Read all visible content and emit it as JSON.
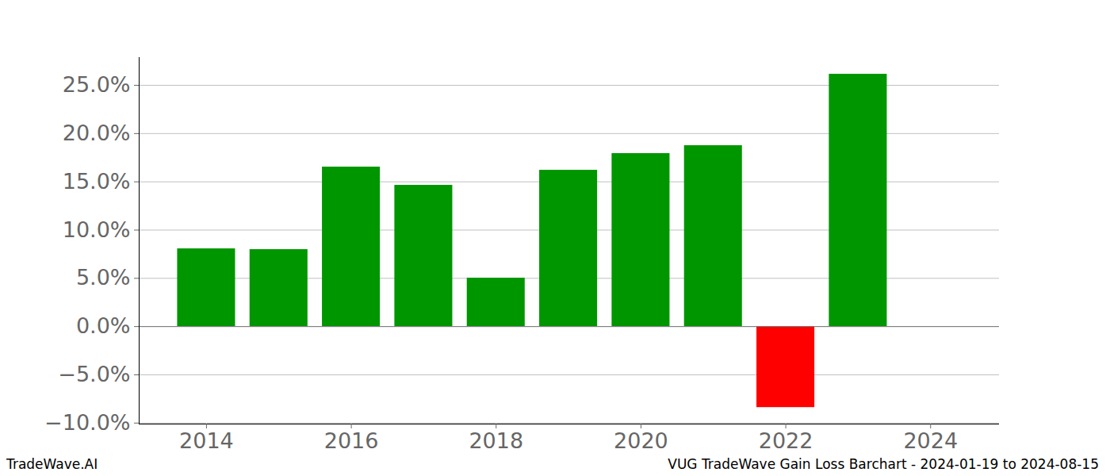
{
  "chart_data": {
    "type": "bar",
    "title": "VUG TradeWave Gain Loss Barchart - 2024-01-19 to 2024-08-15",
    "source": "TradeWave.AI",
    "x": [
      2014,
      2015,
      2016,
      2017,
      2018,
      2019,
      2020,
      2021,
      2022,
      2023
    ],
    "values": [
      8.06,
      7.98,
      16.53,
      14.64,
      5.02,
      16.2,
      17.93,
      18.75,
      -8.39,
      26.15
    ],
    "colors": [
      "#009600",
      "#009600",
      "#009600",
      "#009600",
      "#009600",
      "#009600",
      "#009600",
      "#009600",
      "#ff0000",
      "#009600"
    ],
    "xlim": [
      2013.07,
      2024.95
    ],
    "xticks": [
      2014,
      2016,
      2018,
      2020,
      2022,
      2024
    ],
    "ylim": [
      -10.1,
      27.88
    ],
    "yticks": [
      {
        "value": -10,
        "label": "−10.0%"
      },
      {
        "value": -5,
        "label": "−5.0%"
      },
      {
        "value": 0,
        "label": "0.0%"
      },
      {
        "value": 5,
        "label": "5.0%"
      },
      {
        "value": 10,
        "label": "10.0%"
      },
      {
        "value": 15,
        "label": "15.0%"
      },
      {
        "value": 20,
        "label": "20.0%"
      },
      {
        "value": 25,
        "label": "25.0%"
      }
    ],
    "grid": true
  }
}
